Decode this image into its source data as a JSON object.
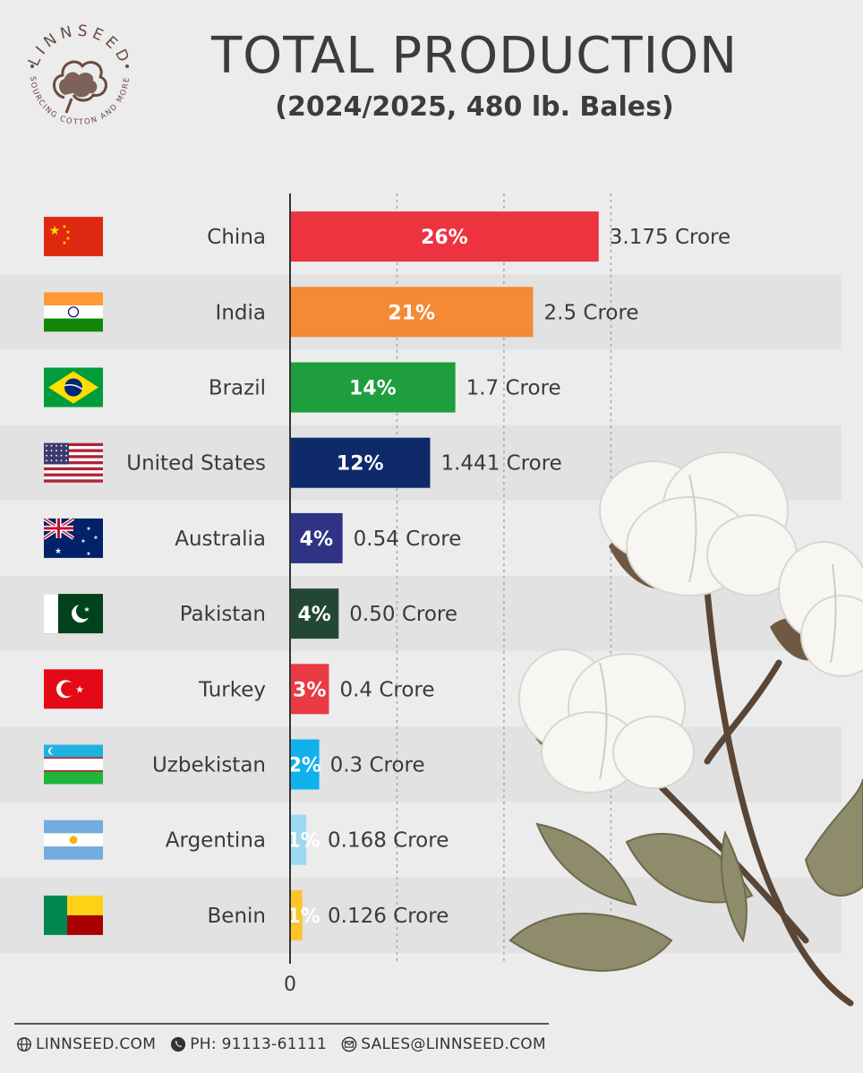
{
  "header": {
    "title": "TOTAL PRODUCTION",
    "subtitle": "(2024/2025, 480 lb. Bales)"
  },
  "logo": {
    "brand": "LINNSEED",
    "tagline": "SOURCING COTTON AND MORE",
    "color": "#6b4a3f"
  },
  "chart_data": {
    "type": "bar",
    "orientation": "horizontal",
    "categories": [
      "China",
      "India",
      "Brazil",
      "United States",
      "Australia",
      "Pakistan",
      "Turkey",
      "Uzbekistan",
      "Argentina",
      "Benin"
    ],
    "series": [
      {
        "values": [
          3.175,
          2.5,
          1.7,
          1.441,
          0.54,
          0.5,
          0.4,
          0.3,
          0.168,
          0.126
        ],
        "value_labels": [
          "3.175 Crore",
          "2.5 Crore",
          "1.7 Crore",
          "1.441 Crore",
          "0.54 Crore",
          "0.50 Crore",
          "0.4 Crore",
          "0.3 Crore",
          "0.168 Crore",
          "0.126 Crore"
        ],
        "share_labels": [
          "26%",
          "21%",
          "14%",
          "12%",
          "4%",
          "4%",
          "3%",
          "2%",
          "1%",
          "1%"
        ]
      }
    ],
    "colors": [
      "#ee3340",
      "#f48a35",
      "#1e9e3d",
      "#0f2a6b",
      "#2f3385",
      "#244733",
      "#ea3a44",
      "#13b0ee",
      "#9fd8f3",
      "#fcc42a"
    ],
    "flags": [
      "china-flag",
      "india-flag",
      "brazil-flag",
      "usa-flag",
      "australia-flag",
      "pakistan-flag",
      "turkey-flag",
      "uzbekistan-flag",
      "argentina-flag",
      "benin-flag"
    ],
    "xtick_labels": [
      "0"
    ],
    "grid": true,
    "legend": "none"
  },
  "footer": {
    "website": "LINNSEED.COM",
    "phone": "PH: 91113-61111",
    "email": "SALES@LINNSEED.COM"
  }
}
